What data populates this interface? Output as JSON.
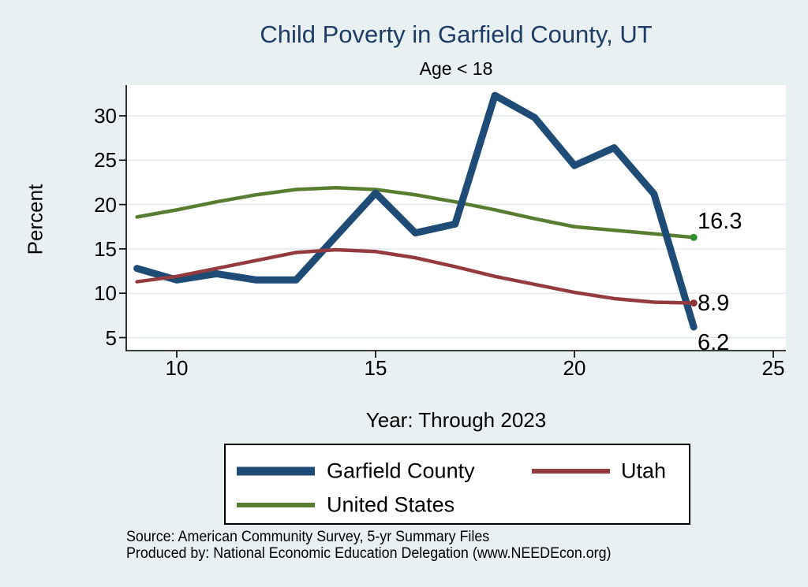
{
  "title": "Child Poverty in Garfield County, UT",
  "subtitle": "Age < 18",
  "chart_data": {
    "type": "line",
    "title": "Child Poverty in Garfield County, UT",
    "subtitle": "Age < 18",
    "xlabel": "Year: Through 2023",
    "ylabel": "Percent",
    "x": [
      9,
      10,
      11,
      12,
      13,
      14,
      15,
      16,
      17,
      18,
      19,
      20,
      21,
      22,
      23
    ],
    "series": [
      {
        "name": "Garfield County",
        "color": "#1e4c77",
        "width": 9,
        "values": [
          12.8,
          11.5,
          12.2,
          11.5,
          11.5,
          16.4,
          21.3,
          16.8,
          17.8,
          32.3,
          29.8,
          24.4,
          26.4,
          21.2,
          6.2
        ],
        "end_marker": false
      },
      {
        "name": "Utah",
        "color": "#943b40",
        "width": 4.5,
        "values": [
          11.3,
          11.9,
          12.8,
          13.7,
          14.6,
          14.9,
          14.7,
          14.0,
          13.0,
          11.9,
          11.0,
          10.1,
          9.4,
          9.0,
          8.9
        ],
        "end_marker": true,
        "marker_color": "#8e3439"
      },
      {
        "name": "United States",
        "color": "#587d30",
        "width": 4.5,
        "values": [
          18.6,
          19.4,
          20.3,
          21.1,
          21.7,
          21.9,
          21.7,
          21.1,
          20.3,
          19.4,
          18.4,
          17.5,
          17.1,
          16.7,
          16.3
        ],
        "end_marker": true,
        "marker_color": "#2f8f2f"
      }
    ],
    "draw_order": [
      2,
      0,
      1
    ],
    "x_ticks": [
      10,
      15,
      20,
      25
    ],
    "y_ticks": [
      5,
      10,
      15,
      20,
      25,
      30
    ],
    "xlim": [
      8.7,
      25.3
    ],
    "ylim": [
      3.5,
      33.5
    ],
    "grid": true,
    "legend_position": "bottom",
    "end_labels": [
      {
        "text": "16.3",
        "value": 16.3,
        "position": "above"
      },
      {
        "text": "8.9",
        "value": 8.9,
        "position": "right"
      },
      {
        "text": "6.2",
        "value": 6.2,
        "position": "below"
      }
    ]
  },
  "source": {
    "line1": "Source: American Community Survey, 5-yr Summary Files",
    "line2": "Produced by: National Economic Education Delegation (www.NEEDEcon.org)"
  },
  "colors": {
    "background": "#e8f0f2",
    "plot_bg": "#ffffff",
    "grid": "#e0eaee",
    "axis": "#000000",
    "title": "#1e3c64"
  }
}
